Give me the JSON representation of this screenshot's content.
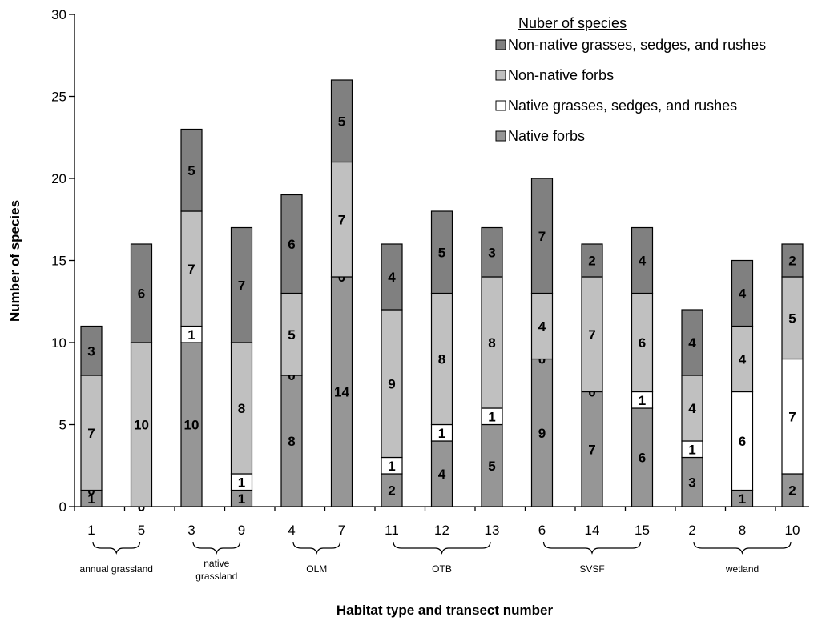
{
  "chart_data": {
    "type": "bar",
    "stacked": true,
    "categories": [
      "1",
      "5",
      "3",
      "9",
      "4",
      "7",
      "11",
      "12",
      "13",
      "6",
      "14",
      "15",
      "2",
      "8",
      "10"
    ],
    "series": [
      {
        "name": "Native forbs",
        "color": "#969696",
        "values": [
          1,
          0,
          10,
          1,
          8,
          14,
          2,
          4,
          5,
          9,
          7,
          6,
          3,
          1,
          2
        ]
      },
      {
        "name": "Native grasses, sedges, and rushes",
        "color": "#ffffff",
        "values": [
          0,
          0,
          1,
          1,
          0,
          0,
          1,
          1,
          1,
          0,
          0,
          1,
          1,
          6,
          7
        ]
      },
      {
        "name": "Non-native forbs",
        "color": "#c0c0c0",
        "values": [
          7,
          10,
          7,
          8,
          5,
          7,
          9,
          8,
          8,
          4,
          7,
          6,
          4,
          4,
          5
        ]
      },
      {
        "name": "Non-native grasses, sedges, and rushes",
        "color": "#808080",
        "values": [
          3,
          6,
          5,
          7,
          6,
          5,
          4,
          5,
          3,
          7,
          2,
          4,
          4,
          4,
          2
        ]
      }
    ],
    "groups": [
      {
        "label": [
          "annual grassland"
        ],
        "members": [
          "1",
          "5"
        ]
      },
      {
        "label": [
          "native",
          "grassland"
        ],
        "members": [
          "3",
          "9"
        ]
      },
      {
        "label": [
          "OLM"
        ],
        "members": [
          "4",
          "7"
        ]
      },
      {
        "label": [
          "OTB"
        ],
        "members": [
          "11",
          "12",
          "13"
        ]
      },
      {
        "label": [
          "SVSF"
        ],
        "members": [
          "6",
          "14",
          "15"
        ]
      },
      {
        "label": [
          "wetland"
        ],
        "members": [
          "2",
          "8",
          "10"
        ]
      }
    ],
    "ylim": [
      0,
      30
    ],
    "yticks": [
      0,
      5,
      10,
      15,
      20,
      25,
      30
    ],
    "ylabel": "Number of species",
    "xlabel": "Habitat type and transect number",
    "legend_title": "Nuber of species",
    "legend_order": [
      3,
      2,
      1,
      0
    ],
    "legend_position": "top-right",
    "grid": false
  }
}
